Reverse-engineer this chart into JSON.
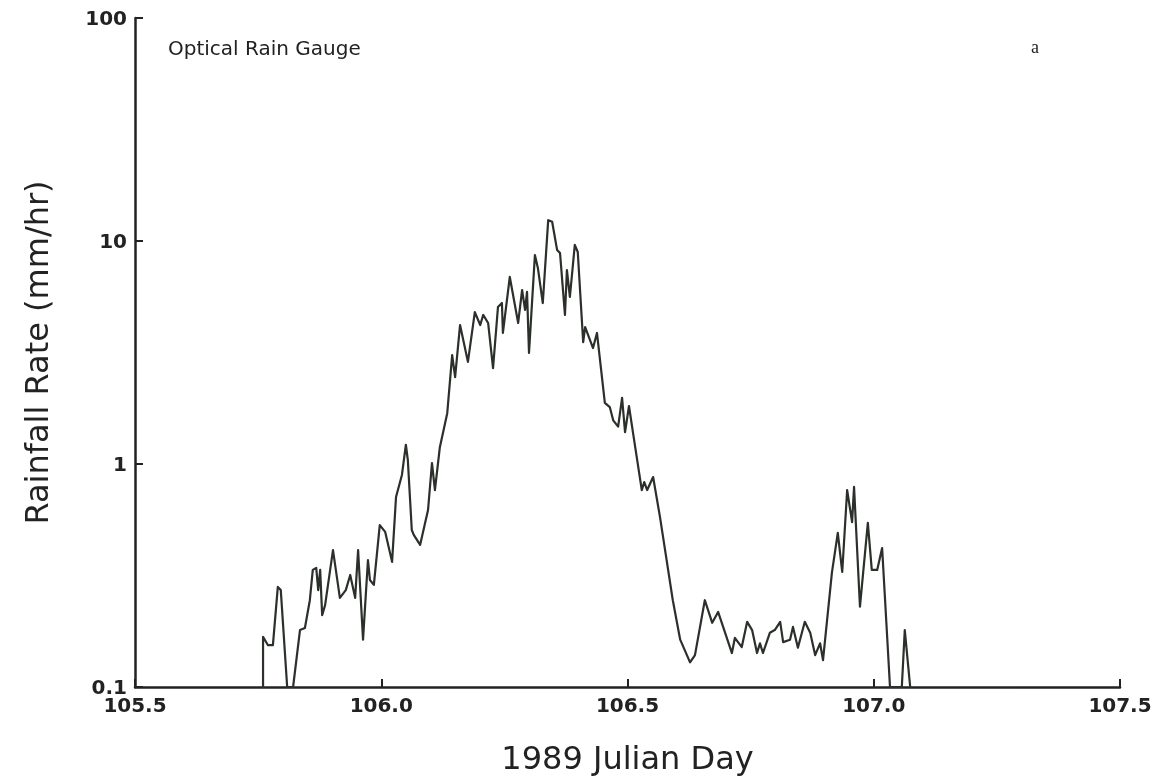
{
  "chart_data": {
    "type": "line",
    "xlabel": "1989 Julian Day",
    "ylabel": "Rainfall Rate (mm/hr)",
    "annotations": [
      "Optical Rain Gauge",
      "a"
    ],
    "log": "y",
    "grid": false,
    "marker": "none",
    "line_style": "solid",
    "xlim": [
      105.5,
      107.5
    ],
    "xticks": [
      105.5,
      {
        "value": 106,
        "label": "106.0"
      },
      106.5,
      {
        "value": 107,
        "label": "107.0"
      },
      107.5
    ],
    "ylim": [
      0.1,
      100
    ],
    "yticks": [
      0.1,
      1,
      10,
      100
    ],
    "series": [
      {
        "color": "#2b302b",
        "x": [
          105.76,
          105.76,
          105.77,
          105.78,
          105.79,
          105.796,
          105.809,
          105.821,
          105.835,
          105.845,
          105.855,
          105.861,
          105.868,
          105.872,
          105.876,
          105.88,
          105.886,
          105.902,
          105.916,
          105.928,
          105.937,
          105.947,
          105.953,
          105.963,
          105.973,
          105.977,
          105.985,
          105.997,
          106.008,
          106.022,
          106.03,
          106.042,
          106.05,
          106.054,
          106.062,
          106.066,
          106.079,
          106.095,
          106.103,
          106.109,
          106.119,
          106.134,
          106.144,
          106.15,
          106.16,
          106.176,
          106.19,
          106.201,
          106.207,
          106.217,
          106.227,
          106.237,
          106.245,
          106.247,
          106.261,
          106.278,
          106.286,
          106.292,
          106.296,
          106.3,
          106.312,
          106.318,
          106.328,
          106.339,
          106.347,
          106.357,
          106.363,
          106.373,
          106.377,
          106.383,
          106.393,
          106.399,
          106.41,
          106.414,
          106.43,
          106.438,
          106.454,
          106.464,
          106.471,
          106.481,
          106.489,
          106.495,
          106.503,
          106.511,
          106.529,
          106.534,
          106.54,
          106.552,
          106.566,
          106.592,
          106.607,
          106.627,
          106.637,
          106.657,
          106.672,
          106.684,
          106.712,
          106.718,
          106.732,
          106.743,
          106.753,
          106.763,
          106.769,
          106.775,
          106.789,
          106.799,
          106.81,
          106.816,
          106.83,
          106.836,
          106.846,
          106.86,
          106.871,
          106.881,
          106.891,
          106.897,
          106.915,
          106.927,
          106.936,
          106.946,
          106.956,
          106.96,
          106.972,
          106.988,
          106.996,
          107.007,
          107.017,
          107.033,
          107.057,
          107.063,
          107.074
        ],
        "values": [
          0.1,
          0.168,
          0.154,
          0.154,
          0.281,
          0.272,
          0.1,
          0.1,
          0.18,
          0.184,
          0.245,
          0.335,
          0.342,
          0.272,
          0.335,
          0.21,
          0.233,
          0.411,
          0.251,
          0.272,
          0.318,
          0.251,
          0.411,
          0.163,
          0.371,
          0.302,
          0.287,
          0.532,
          0.496,
          0.364,
          0.711,
          0.893,
          1.22,
          1.04,
          0.506,
          0.481,
          0.434,
          0.622,
          1.01,
          0.764,
          1.19,
          1.69,
          3.08,
          2.45,
          4.2,
          2.87,
          4.8,
          4.2,
          4.66,
          4.29,
          2.69,
          5.06,
          5.27,
          3.87,
          6.9,
          4.29,
          6.03,
          4.91,
          5.91,
          3.15,
          8.65,
          7.57,
          5.27,
          12.4,
          12.2,
          9.12,
          8.83,
          4.66,
          7.41,
          5.61,
          9.6,
          8.93,
          3.52,
          4.11,
          3.31,
          3.87,
          1.88,
          1.8,
          1.57,
          1.47,
          1.98,
          1.39,
          1.82,
          1.39,
          0.764,
          0.83,
          0.764,
          0.874,
          0.578,
          0.245,
          0.163,
          0.129,
          0.139,
          0.245,
          0.194,
          0.217,
          0.142,
          0.166,
          0.151,
          0.196,
          0.18,
          0.142,
          0.157,
          0.142,
          0.175,
          0.18,
          0.196,
          0.159,
          0.163,
          0.186,
          0.15,
          0.196,
          0.175,
          0.139,
          0.157,
          0.132,
          0.325,
          0.491,
          0.328,
          0.764,
          0.549,
          0.789,
          0.229,
          0.544,
          0.335,
          0.335,
          0.42,
          0.1,
          0.1,
          0.18,
          0.1
        ]
      }
    ]
  }
}
